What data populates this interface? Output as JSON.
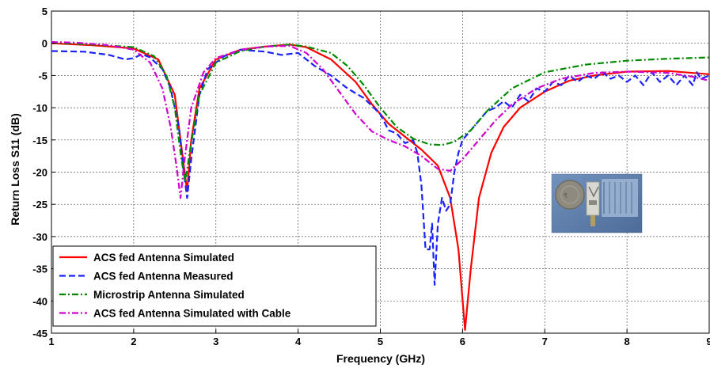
{
  "chart_data": {
    "type": "line",
    "title": "",
    "xlabel": "Frequency (GHz)",
    "ylabel": "Return Loss S11 (dB)",
    "xlim": [
      1,
      9
    ],
    "ylim": [
      -45,
      5
    ],
    "xticks": [
      1,
      2,
      3,
      4,
      5,
      6,
      7,
      8,
      9
    ],
    "yticks": [
      5,
      0,
      -5,
      -10,
      -15,
      -20,
      -25,
      -30,
      -35,
      -40,
      -45
    ],
    "grid": true,
    "legend_position": "bottom-left",
    "series": [
      {
        "name": "ACS fed Antenna Simulated",
        "color": "#ff0000",
        "style": "solid",
        "points": [
          [
            1.0,
            0.0
          ],
          [
            1.5,
            -0.3
          ],
          [
            2.0,
            -0.8
          ],
          [
            2.3,
            -2.5
          ],
          [
            2.5,
            -8
          ],
          [
            2.6,
            -18
          ],
          [
            2.65,
            -23
          ],
          [
            2.7,
            -15
          ],
          [
            2.8,
            -7
          ],
          [
            3.0,
            -2.5
          ],
          [
            3.3,
            -1
          ],
          [
            3.6,
            -0.5
          ],
          [
            3.9,
            -0.2
          ],
          [
            4.1,
            -0.6
          ],
          [
            4.4,
            -2.5
          ],
          [
            4.7,
            -6
          ],
          [
            4.9,
            -9.5
          ],
          [
            5.1,
            -12.5
          ],
          [
            5.3,
            -14.5
          ],
          [
            5.5,
            -16.5
          ],
          [
            5.7,
            -19
          ],
          [
            5.85,
            -24
          ],
          [
            5.95,
            -32
          ],
          [
            6.03,
            -44.5
          ],
          [
            6.1,
            -35
          ],
          [
            6.2,
            -24
          ],
          [
            6.35,
            -17
          ],
          [
            6.5,
            -13
          ],
          [
            6.7,
            -10
          ],
          [
            7.0,
            -7.5
          ],
          [
            7.3,
            -5.8
          ],
          [
            7.6,
            -5
          ],
          [
            8.0,
            -4.4
          ],
          [
            8.5,
            -4.3
          ],
          [
            9.0,
            -4.8
          ]
        ]
      },
      {
        "name": "ACS fed Antenna Measured",
        "color": "#1a22ff",
        "style": "dashed",
        "points": [
          [
            1.0,
            -1.2
          ],
          [
            1.4,
            -1.3
          ],
          [
            1.7,
            -1.8
          ],
          [
            1.9,
            -2.5
          ],
          [
            2.0,
            -2.3
          ],
          [
            2.1,
            -1.7
          ],
          [
            2.2,
            -2.2
          ],
          [
            2.35,
            -4
          ],
          [
            2.45,
            -7
          ],
          [
            2.55,
            -13
          ],
          [
            2.6,
            -19
          ],
          [
            2.65,
            -24
          ],
          [
            2.7,
            -18
          ],
          [
            2.8,
            -8
          ],
          [
            2.9,
            -4
          ],
          [
            3.1,
            -2
          ],
          [
            3.3,
            -1
          ],
          [
            3.6,
            -1.3
          ],
          [
            3.8,
            -1.8
          ],
          [
            4.0,
            -1.5
          ],
          [
            4.2,
            -3.5
          ],
          [
            4.4,
            -5
          ],
          [
            4.6,
            -7
          ],
          [
            4.8,
            -8.5
          ],
          [
            5.0,
            -11
          ],
          [
            5.1,
            -13.5
          ],
          [
            5.2,
            -14
          ],
          [
            5.3,
            -15.5
          ],
          [
            5.4,
            -15
          ],
          [
            5.45,
            -17
          ],
          [
            5.5,
            -22
          ],
          [
            5.55,
            -32
          ],
          [
            5.6,
            -32
          ],
          [
            5.63,
            -28
          ],
          [
            5.66,
            -37.5
          ],
          [
            5.7,
            -28
          ],
          [
            5.75,
            -24
          ],
          [
            5.8,
            -26
          ],
          [
            5.85,
            -25
          ],
          [
            5.9,
            -20
          ],
          [
            5.95,
            -17
          ],
          [
            6.0,
            -15
          ],
          [
            6.1,
            -13.5
          ],
          [
            6.2,
            -12
          ],
          [
            6.3,
            -10.5
          ],
          [
            6.4,
            -10
          ],
          [
            6.5,
            -9
          ],
          [
            6.6,
            -10
          ],
          [
            6.7,
            -8
          ],
          [
            6.8,
            -9
          ],
          [
            6.9,
            -7
          ],
          [
            7.0,
            -7.5
          ],
          [
            7.1,
            -6
          ],
          [
            7.2,
            -6.5
          ],
          [
            7.3,
            -5
          ],
          [
            7.4,
            -6
          ],
          [
            7.5,
            -5
          ],
          [
            7.6,
            -5.5
          ],
          [
            7.7,
            -4.5
          ],
          [
            7.8,
            -5.5
          ],
          [
            7.9,
            -5
          ],
          [
            8.0,
            -6
          ],
          [
            8.1,
            -5
          ],
          [
            8.2,
            -6.5
          ],
          [
            8.3,
            -4.5
          ],
          [
            8.4,
            -6
          ],
          [
            8.5,
            -5
          ],
          [
            8.6,
            -6.5
          ],
          [
            8.7,
            -5
          ],
          [
            8.8,
            -6.5
          ],
          [
            8.85,
            -4.5
          ],
          [
            8.9,
            -5.5
          ],
          [
            9.0,
            -5
          ]
        ]
      },
      {
        "name": "Microstrip Antenna Simulated",
        "color": "#008a00",
        "style": "dashdot",
        "points": [
          [
            1.0,
            0.1
          ],
          [
            1.5,
            -0.2
          ],
          [
            2.0,
            -0.6
          ],
          [
            2.25,
            -2
          ],
          [
            2.4,
            -5
          ],
          [
            2.5,
            -10
          ],
          [
            2.58,
            -18
          ],
          [
            2.63,
            -21.5
          ],
          [
            2.68,
            -17
          ],
          [
            2.8,
            -8
          ],
          [
            3.0,
            -3
          ],
          [
            3.3,
            -1.2
          ],
          [
            3.6,
            -0.5
          ],
          [
            3.9,
            -0.2
          ],
          [
            4.1,
            -0.5
          ],
          [
            4.4,
            -1.5
          ],
          [
            4.6,
            -3.5
          ],
          [
            4.8,
            -6.5
          ],
          [
            5.0,
            -10
          ],
          [
            5.2,
            -13
          ],
          [
            5.4,
            -14.8
          ],
          [
            5.6,
            -15.7
          ],
          [
            5.75,
            -15.8
          ],
          [
            5.9,
            -15.3
          ],
          [
            6.1,
            -13.5
          ],
          [
            6.3,
            -10.5
          ],
          [
            6.6,
            -7
          ],
          [
            7.0,
            -4.5
          ],
          [
            7.5,
            -3.3
          ],
          [
            8.0,
            -2.7
          ],
          [
            8.5,
            -2.4
          ],
          [
            9.0,
            -2.2
          ]
        ]
      },
      {
        "name": "ACS fed Antenna Simulated with Cable",
        "color": "#d000d0",
        "style": "dashdot",
        "points": [
          [
            1.0,
            0.2
          ],
          [
            1.3,
            0.1
          ],
          [
            1.7,
            -0.3
          ],
          [
            2.0,
            -1
          ],
          [
            2.2,
            -3
          ],
          [
            2.35,
            -7
          ],
          [
            2.45,
            -13
          ],
          [
            2.52,
            -19
          ],
          [
            2.57,
            -24
          ],
          [
            2.62,
            -18
          ],
          [
            2.7,
            -10
          ],
          [
            2.85,
            -4.5
          ],
          [
            3.0,
            -2.3
          ],
          [
            3.3,
            -1
          ],
          [
            3.6,
            -0.5
          ],
          [
            3.9,
            -0.4
          ],
          [
            4.1,
            -1.5
          ],
          [
            4.3,
            -4
          ],
          [
            4.5,
            -7.5
          ],
          [
            4.7,
            -11
          ],
          [
            4.9,
            -13.7
          ],
          [
            5.1,
            -15
          ],
          [
            5.3,
            -16
          ],
          [
            5.5,
            -17.5
          ],
          [
            5.7,
            -19.5
          ],
          [
            5.85,
            -19.8
          ],
          [
            6.0,
            -18
          ],
          [
            6.2,
            -15
          ],
          [
            6.4,
            -12
          ],
          [
            6.6,
            -9.5
          ],
          [
            6.9,
            -7
          ],
          [
            7.2,
            -5.5
          ],
          [
            7.6,
            -4.6
          ],
          [
            8.0,
            -4.4
          ],
          [
            8.5,
            -4.6
          ],
          [
            8.8,
            -5.2
          ],
          [
            9.0,
            -5.8
          ]
        ]
      }
    ],
    "inset_photo": {
      "description_icon": "antenna-photo-with-coin-and-ruler-icon"
    }
  }
}
